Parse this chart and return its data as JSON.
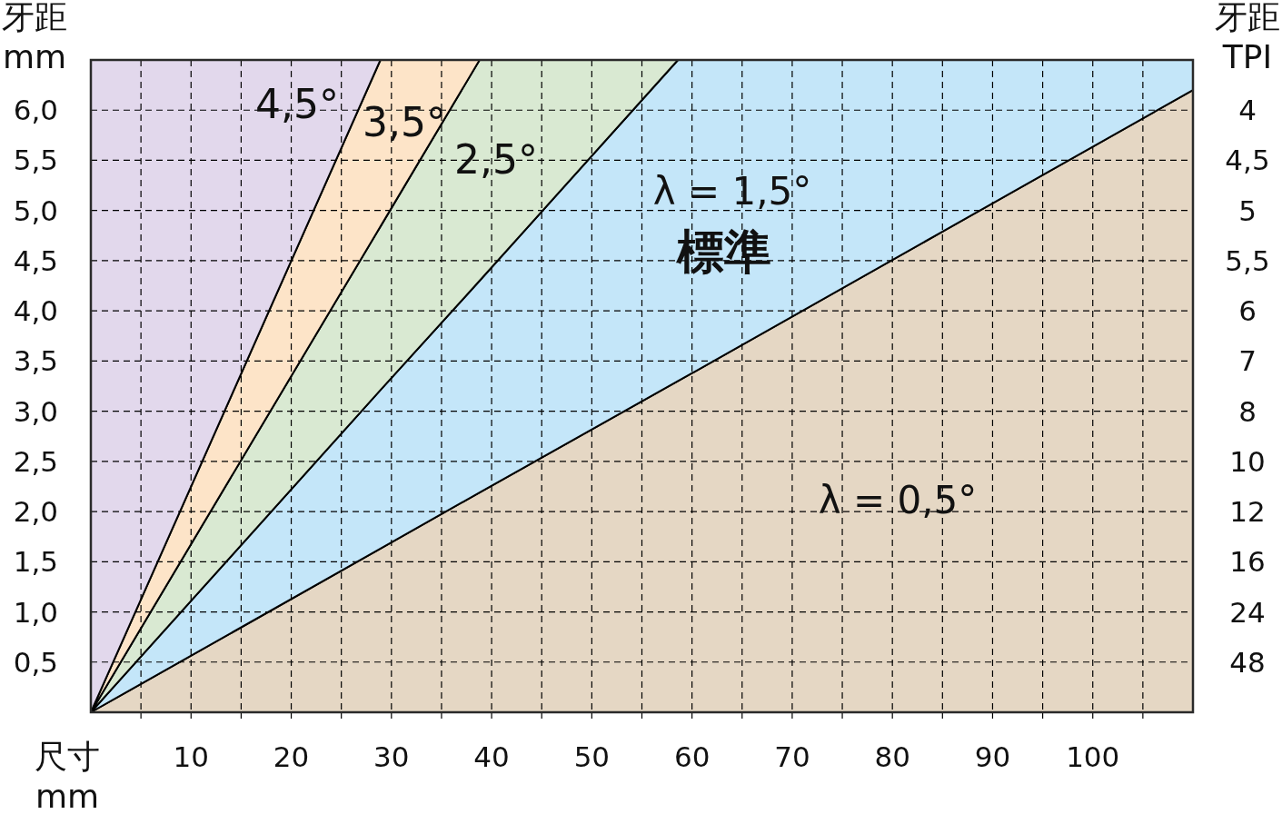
{
  "chart_data": {
    "type": "area",
    "stacked": true,
    "xlabel": "尺寸 mm",
    "ylabel": "牙距 mm",
    "y2label": "牙距 TPI",
    "xlim": [
      0,
      110
    ],
    "ylim": [
      0,
      6.5
    ],
    "xticks": [
      {
        "value": 5,
        "label": null
      },
      10,
      {
        "value": 15,
        "label": null
      },
      20,
      {
        "value": 25,
        "label": null
      },
      30,
      {
        "value": 35,
        "label": null
      },
      40,
      {
        "value": 45,
        "label": null
      },
      50,
      {
        "value": 55,
        "label": null
      },
      60,
      {
        "value": 65,
        "label": null
      },
      70,
      {
        "value": 75,
        "label": null
      },
      80,
      {
        "value": 85,
        "label": null
      },
      90,
      {
        "value": 95,
        "label": null
      },
      100,
      {
        "value": 105,
        "label": null
      }
    ],
    "yticks": [
      {
        "value": 0.5,
        "label": "0,5"
      },
      {
        "value": 1.0,
        "label": "1,0"
      },
      {
        "value": 1.5,
        "label": "1,5"
      },
      {
        "value": 2.0,
        "label": "2,0"
      },
      {
        "value": 2.5,
        "label": "2,5"
      },
      {
        "value": 3.0,
        "label": "3,0"
      },
      {
        "value": 3.5,
        "label": "3,5"
      },
      {
        "value": 4.0,
        "label": "4,0"
      },
      {
        "value": 4.5,
        "label": "4,5"
      },
      {
        "value": 5.0,
        "label": "5,0"
      },
      {
        "value": 5.5,
        "label": "5,5"
      },
      {
        "value": 6.0,
        "label": "6,0"
      }
    ],
    "y2_categories": [
      null,
      "4",
      "4,5",
      "5",
      "5,5",
      "6",
      "7",
      "8",
      "10",
      "12",
      "16",
      "24",
      "48",
      null
    ],
    "grid": true,
    "x": [
      0,
      28.9,
      38.8,
      58.6,
      110
    ],
    "series": [
      {
        "color": "#e5d7c4",
        "values": [
          0,
          1.63,
          2.19,
          3.3,
          6.2
        ]
      },
      {
        "color": "#c4e6f9",
        "values": [
          0,
          1.58,
          2.11,
          3.2,
          0.3
        ]
      },
      {
        "color": "#d9e9d2",
        "x": [
          0,
          28.9,
          38.8,
          58.6
        ],
        "values": [
          0,
          1.63,
          2.2,
          0
        ]
      },
      {
        "color": "#fde4c8",
        "x": [
          0,
          28.9,
          38.8
        ],
        "values": [
          0,
          1.66,
          0
        ]
      },
      {
        "color": "#e2d8ec",
        "x": [
          0,
          28.9
        ],
        "values": [
          6.5,
          0
        ]
      }
    ],
    "annotations": [
      "4,5°",
      "3,5°",
      "2,5°",
      "λ = 1,5°",
      "標準",
      "λ = 0,5°"
    ]
  }
}
